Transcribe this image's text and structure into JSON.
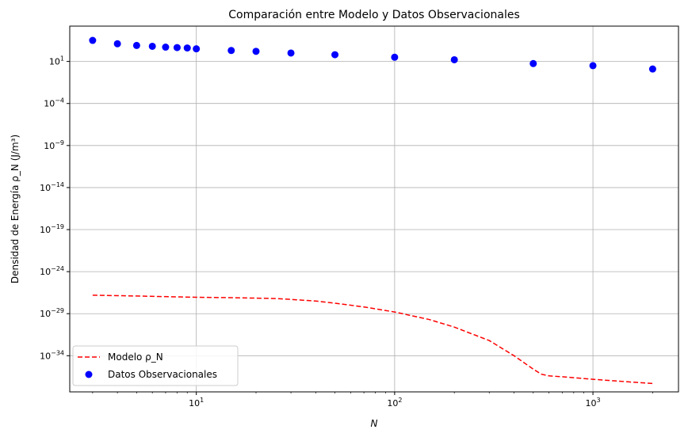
{
  "chart_data": {
    "type": "scatter",
    "title": "Comparación entre Modelo y Datos Observacionales",
    "xlabel": "N",
    "ylabel": "Densidad de Energía ρ_N (J/m³)",
    "xscale": "log",
    "yscale": "log",
    "xlim": [
      2.3,
      2700
    ],
    "ylim_exp": [
      -38.3,
      5.2
    ],
    "grid": true,
    "legend_position": "lower-left",
    "x_ticks": [
      {
        "value": 10,
        "base": "10",
        "exp": "1"
      },
      {
        "value": 100,
        "base": "10",
        "exp": "2"
      },
      {
        "value": 1000,
        "base": "10",
        "exp": "3"
      }
    ],
    "y_ticks": [
      {
        "exp_value": 1,
        "base": "10",
        "exp": "1"
      },
      {
        "exp_value": -4,
        "base": "10",
        "exp": "−4"
      },
      {
        "exp_value": -9,
        "base": "10",
        "exp": "−9"
      },
      {
        "exp_value": -14,
        "base": "10",
        "exp": "−14"
      },
      {
        "exp_value": -19,
        "base": "10",
        "exp": "−19"
      },
      {
        "exp_value": -24,
        "base": "10",
        "exp": "−24"
      },
      {
        "exp_value": -29,
        "base": "10",
        "exp": "−29"
      },
      {
        "exp_value": -34,
        "base": "10",
        "exp": "−34"
      }
    ],
    "series": [
      {
        "name": "Modelo ρ_N",
        "kind": "line",
        "style": "dashed",
        "color": "#ff0000",
        "x": [
          3,
          5,
          8,
          10,
          15,
          20,
          25,
          30,
          40,
          50,
          70,
          100,
          150,
          200,
          300,
          400,
          500,
          550,
          600,
          700,
          1000,
          1500,
          2000
        ],
        "log10_y": [
          -26.8,
          -26.9,
          -27.0,
          -27.05,
          -27.1,
          -27.15,
          -27.2,
          -27.3,
          -27.5,
          -27.75,
          -28.2,
          -28.8,
          -29.7,
          -30.6,
          -32.2,
          -34.0,
          -35.6,
          -36.2,
          -36.4,
          -36.5,
          -36.8,
          -37.1,
          -37.3
        ]
      },
      {
        "name": "Datos Observacionales",
        "kind": "scatter",
        "color": "#0000ff",
        "x": [
          3,
          4,
          5,
          6,
          7,
          8,
          9,
          10,
          15,
          20,
          30,
          50,
          100,
          200,
          500,
          1000,
          2000
        ],
        "log10_y": [
          3.5,
          3.1,
          2.9,
          2.8,
          2.7,
          2.65,
          2.6,
          2.5,
          2.3,
          2.2,
          2.0,
          1.8,
          1.5,
          1.2,
          0.75,
          0.5,
          0.1
        ]
      }
    ]
  }
}
